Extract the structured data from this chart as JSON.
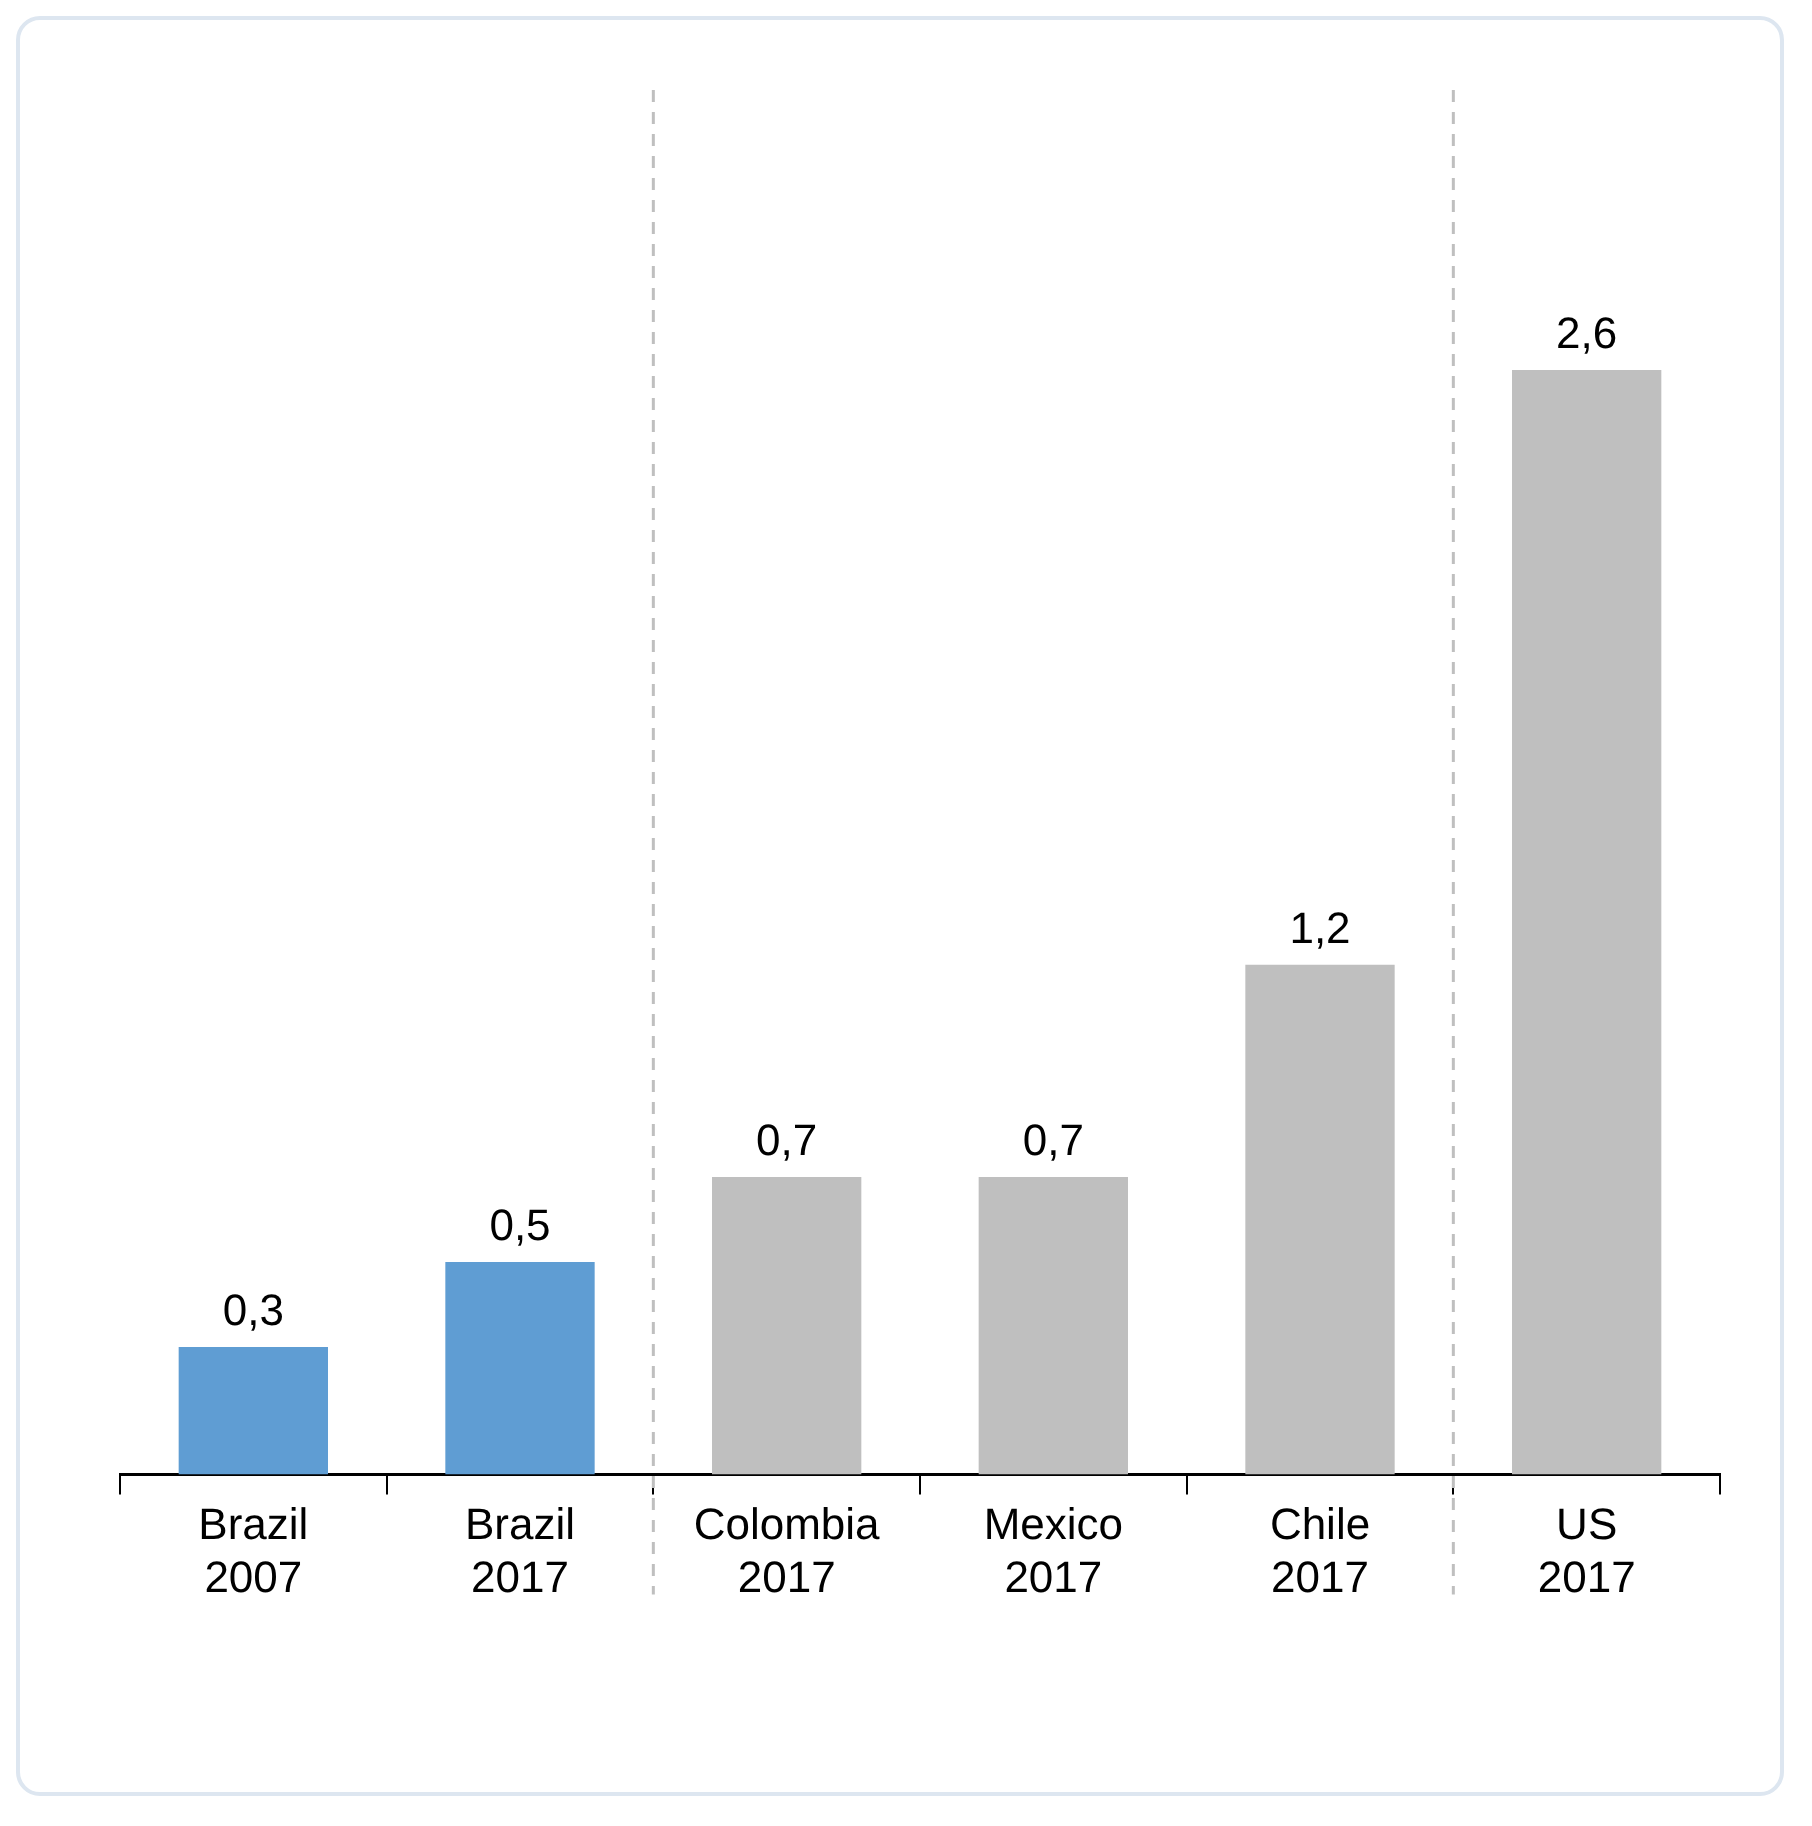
{
  "chart_data": {
    "type": "bar",
    "categories": [
      "Brazil\n2007",
      "Brazil\n2017",
      "Colombia\n2017",
      "Mexico\n2017",
      "Chile\n2017",
      "US\n2017"
    ],
    "values": [
      0.3,
      0.5,
      0.7,
      0.7,
      1.2,
      2.6
    ],
    "colors": [
      "#5f9dd3",
      "#5f9dd3",
      "#bfbfbf",
      "#bfbfbf",
      "#bfbfbf",
      "#bfbfbf"
    ],
    "value_labels": [
      "0,3",
      "0,5",
      "0,7",
      "0,7",
      "1,2",
      "2,6"
    ],
    "tick_labels": "x",
    "grid": false,
    "legend": false
  }
}
